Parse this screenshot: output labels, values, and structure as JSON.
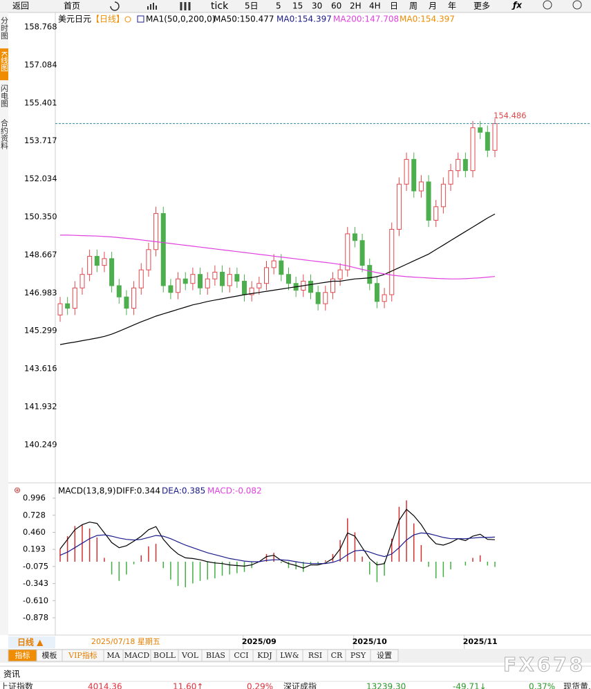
{
  "toolbar": {
    "buttons": [
      "返回",
      "首页",
      "tick",
      "5日",
      "5",
      "15",
      "30",
      "60",
      "2H",
      "4H",
      "日",
      "周",
      "月",
      "年",
      "更多"
    ]
  },
  "side_tabs": [
    "分时图",
    "K线图",
    "闪电图",
    "合约资料"
  ],
  "chart_data": [
    {
      "type": "candlestick",
      "title": "美元日元",
      "period": "【日线】",
      "indicator": "MA1(50,0,200,0)",
      "legend": [
        {
          "label": "MA50:150.477",
          "color": "#000000"
        },
        {
          "label": "MA0:154.397",
          "color": "#1a1a8c"
        },
        {
          "label": "MA200:147.708",
          "color": "#e040e0"
        },
        {
          "label": "MA0:154.397",
          "color": "#f08c00"
        }
      ],
      "ylim": [
        138.56,
        159.35
      ],
      "yticks": [
        {
          "value": 158.768,
          "label": "158.768"
        },
        {
          "value": 157.084,
          "label": "157.084"
        },
        {
          "value": 155.401,
          "label": "155.401"
        },
        {
          "value": 153.717,
          "label": "153.717"
        },
        {
          "value": 152.034,
          "label": "152.034"
        },
        {
          "value": 150.35,
          "label": "150.350"
        },
        {
          "value": 148.667,
          "label": "148.667"
        },
        {
          "value": 146.983,
          "label": "146.983"
        },
        {
          "value": 145.299,
          "label": "145.299"
        },
        {
          "value": 143.616,
          "label": "143.616"
        },
        {
          "value": 141.932,
          "label": "141.932"
        },
        {
          "value": 140.249,
          "label": "140.249"
        }
      ],
      "categories": [
        null,
        null,
        null,
        null,
        null,
        null,
        null,
        null,
        null,
        null,
        null,
        null,
        null,
        null,
        null,
        null,
        null,
        null,
        null,
        null,
        null,
        null,
        null,
        null,
        null,
        null,
        null,
        "2025/09",
        null,
        null,
        null,
        null,
        null,
        null,
        null,
        null,
        null,
        null,
        null,
        null,
        null,
        null,
        "2025/10",
        null,
        null,
        null,
        null,
        null,
        null,
        null,
        null,
        null,
        null,
        null,
        null,
        null,
        null,
        "2025/11",
        null,
        null
      ],
      "open": [
        146.0,
        146.5,
        146.3,
        147.2,
        147.8,
        148.6,
        148.2,
        148.5,
        147.3,
        146.8,
        146.3,
        147.2,
        148.0,
        148.9,
        150.5,
        147.3,
        147.0,
        147.6,
        147.4,
        147.8,
        147.2,
        147.6,
        147.9,
        147.3,
        147.8,
        147.5,
        146.9,
        147.2,
        147.4,
        148.1,
        148.4,
        147.8,
        147.4,
        147.1,
        147.5,
        147.0,
        146.5,
        147.0,
        147.6,
        148.0,
        149.6,
        149.3,
        148.2,
        147.4,
        146.6,
        146.9,
        149.8,
        151.8,
        152.9,
        151.5,
        151.9,
        150.2,
        150.8,
        151.8,
        152.4,
        152.9,
        152.4,
        154.3,
        154.1,
        153.3
      ],
      "high": [
        146.8,
        146.8,
        147.5,
        148.1,
        148.9,
        148.9,
        148.8,
        148.8,
        147.6,
        147.1,
        147.5,
        148.3,
        149.2,
        150.8,
        150.8,
        147.6,
        147.9,
        147.9,
        148.1,
        148.1,
        147.9,
        148.2,
        148.2,
        148.1,
        148.1,
        147.8,
        147.5,
        147.7,
        148.4,
        148.7,
        148.7,
        148.1,
        147.7,
        147.8,
        147.8,
        147.3,
        147.3,
        147.9,
        148.3,
        149.9,
        149.9,
        149.6,
        148.5,
        147.7,
        147.2,
        150.1,
        152.1,
        153.2,
        153.2,
        152.2,
        152.2,
        151.1,
        152.1,
        152.7,
        153.2,
        153.2,
        154.6,
        154.6,
        154.4,
        154.7
      ],
      "low": [
        145.7,
        146.0,
        146.0,
        146.9,
        147.5,
        147.9,
        147.9,
        147.0,
        146.5,
        146.0,
        146.0,
        146.9,
        147.7,
        148.6,
        147.0,
        146.7,
        146.7,
        147.1,
        147.1,
        146.9,
        146.9,
        147.3,
        147.0,
        147.0,
        147.2,
        146.6,
        146.6,
        146.9,
        147.1,
        147.8,
        147.5,
        147.1,
        146.8,
        146.8,
        146.7,
        146.2,
        146.2,
        146.7,
        147.3,
        147.7,
        149.0,
        147.9,
        147.1,
        146.3,
        146.3,
        146.6,
        149.5,
        151.5,
        151.2,
        151.2,
        149.9,
        149.9,
        150.5,
        151.5,
        152.1,
        152.1,
        152.1,
        153.8,
        153.0,
        153.0
      ],
      "close": [
        146.5,
        146.3,
        147.2,
        147.8,
        148.6,
        148.2,
        148.5,
        147.3,
        146.8,
        146.3,
        147.2,
        148.0,
        148.9,
        150.5,
        147.3,
        147.0,
        147.6,
        147.4,
        147.8,
        147.2,
        147.6,
        147.9,
        147.3,
        147.8,
        147.5,
        146.9,
        147.2,
        147.4,
        148.1,
        148.4,
        147.8,
        147.4,
        147.1,
        147.5,
        147.0,
        146.5,
        147.0,
        147.6,
        148.0,
        149.6,
        149.3,
        148.2,
        147.4,
        146.6,
        146.9,
        149.8,
        151.8,
        152.9,
        151.5,
        151.9,
        150.2,
        150.8,
        151.8,
        152.4,
        152.9,
        152.4,
        154.3,
        154.1,
        153.3,
        154.486
      ],
      "up_color": "#e0474c",
      "down_color": "#4cae4c",
      "series": [
        {
          "name": "MA50",
          "color": "#000000",
          "values": [
            144.69,
            144.75,
            144.8,
            144.86,
            144.92,
            144.98,
            145.05,
            145.15,
            145.28,
            145.42,
            145.56,
            145.7,
            145.82,
            145.95,
            146.05,
            146.15,
            146.25,
            146.35,
            146.45,
            146.52,
            146.6,
            146.66,
            146.72,
            146.78,
            146.84,
            146.9,
            146.95,
            147.0,
            147.05,
            147.1,
            147.15,
            147.2,
            147.25,
            147.3,
            147.35,
            147.4,
            147.45,
            147.5,
            147.5,
            147.55,
            147.6,
            147.62,
            147.65,
            147.7,
            147.8,
            147.95,
            148.1,
            148.25,
            148.4,
            148.55,
            148.7,
            148.9,
            149.1,
            149.3,
            149.5,
            149.7,
            149.9,
            150.1,
            150.3,
            150.477
          ]
        },
        {
          "name": "MA200",
          "color": "#e040e0",
          "values": [
            149.54,
            149.54,
            149.53,
            149.52,
            149.51,
            149.5,
            149.48,
            149.46,
            149.43,
            149.4,
            149.37,
            149.33,
            149.29,
            149.25,
            149.21,
            149.17,
            149.13,
            149.09,
            149.05,
            149.01,
            148.97,
            148.93,
            148.89,
            148.85,
            148.81,
            148.77,
            148.73,
            148.69,
            148.65,
            148.61,
            148.57,
            148.53,
            148.49,
            148.45,
            148.41,
            148.37,
            148.33,
            148.29,
            148.24,
            148.18,
            148.1,
            148.02,
            147.95,
            147.88,
            147.82,
            147.77,
            147.73,
            147.7,
            147.68,
            147.66,
            147.64,
            147.62,
            147.61,
            147.6,
            147.6,
            147.61,
            147.63,
            147.65,
            147.68,
            147.708
          ]
        }
      ]
    },
    {
      "type": "macd",
      "indicator": "MACD(13,8,9)",
      "legend": [
        {
          "label": "DIFF:0.344",
          "color": "#000000"
        },
        {
          "label": "DEA:0.385",
          "color": "#1a1a8c"
        },
        {
          "label": "MACD:-0.082",
          "color": "#e040e0"
        }
      ],
      "ylim": [
        -1.116,
        1.213
      ],
      "yticks": [
        0.996,
        0.728,
        {
          "value": 0.46,
          "label": "0.460"
        },
        0.193,
        -0.075,
        -0.343,
        {
          "value": -0.61,
          "label": "-0.610"
        },
        -0.878
      ],
      "series": [
        {
          "name": "DIFF",
          "color": "#000000",
          "values": [
            0.2,
            0.35,
            0.5,
            0.58,
            0.62,
            0.6,
            0.45,
            0.3,
            0.22,
            0.25,
            0.32,
            0.4,
            0.5,
            0.55,
            0.35,
            0.22,
            0.12,
            0.06,
            0.05,
            0.03,
            0.0,
            -0.02,
            -0.03,
            -0.05,
            -0.06,
            -0.07,
            -0.05,
            0.0,
            0.08,
            0.1,
            0.02,
            -0.03,
            -0.06,
            -0.1,
            -0.05,
            -0.05,
            -0.02,
            0.05,
            0.2,
            0.45,
            0.4,
            0.22,
            0.05,
            -0.05,
            -0.03,
            0.3,
            0.65,
            0.82,
            0.72,
            0.58,
            0.4,
            0.28,
            0.26,
            0.3,
            0.36,
            0.33,
            0.4,
            0.43,
            0.35,
            0.344
          ]
        },
        {
          "name": "DEA",
          "color": "#1a1a8c",
          "values": [
            0.1,
            0.15,
            0.22,
            0.29,
            0.36,
            0.41,
            0.42,
            0.4,
            0.37,
            0.35,
            0.34,
            0.35,
            0.38,
            0.41,
            0.4,
            0.36,
            0.31,
            0.26,
            0.22,
            0.18,
            0.14,
            0.11,
            0.08,
            0.05,
            0.03,
            0.01,
            0.0,
            0.0,
            0.02,
            0.03,
            0.03,
            0.02,
            0.0,
            -0.02,
            -0.03,
            -0.03,
            -0.03,
            -0.01,
            0.03,
            0.11,
            0.17,
            0.18,
            0.15,
            0.11,
            0.08,
            0.12,
            0.22,
            0.34,
            0.42,
            0.45,
            0.44,
            0.41,
            0.38,
            0.36,
            0.36,
            0.36,
            0.37,
            0.38,
            0.38,
            0.385
          ]
        }
      ],
      "histogram": [
        0.2,
        0.4,
        0.56,
        0.58,
        0.52,
        0.38,
        0.06,
        -0.2,
        -0.3,
        -0.2,
        -0.04,
        0.1,
        0.24,
        0.28,
        -0.1,
        -0.28,
        -0.38,
        -0.4,
        -0.34,
        -0.3,
        -0.28,
        -0.26,
        -0.22,
        -0.2,
        -0.18,
        -0.16,
        -0.1,
        0.0,
        0.12,
        0.14,
        -0.02,
        -0.1,
        -0.12,
        -0.16,
        -0.04,
        -0.04,
        0.02,
        0.12,
        0.34,
        0.68,
        0.46,
        0.08,
        -0.2,
        -0.32,
        -0.22,
        0.36,
        0.86,
        0.96,
        0.6,
        0.26,
        -0.08,
        -0.26,
        -0.24,
        -0.12,
        0.0,
        -0.06,
        0.06,
        0.1,
        -0.06,
        -0.082
      ],
      "up_color": "#d03030",
      "down_color": "#40b040"
    }
  ],
  "period_button": "日线 ▲",
  "crosshair_date": "2025/07/18 星期五",
  "indicator_tabs": [
    "指标",
    "模板",
    "VIP指标",
    "MA",
    "MACD",
    "BOLL",
    "VOL",
    "BIAS",
    "CCI",
    "KDJ",
    "LW&",
    "RSI",
    "CR",
    "PSY",
    "设置"
  ],
  "status": {
    "news": "资讯",
    "items": [
      "上证指数",
      "4014.36",
      "11.60↑",
      "0.29%",
      "深证成指",
      "13239.30",
      "-49.71↓",
      "0.37%",
      "现货黄..."
    ]
  },
  "watermark": "FX678"
}
